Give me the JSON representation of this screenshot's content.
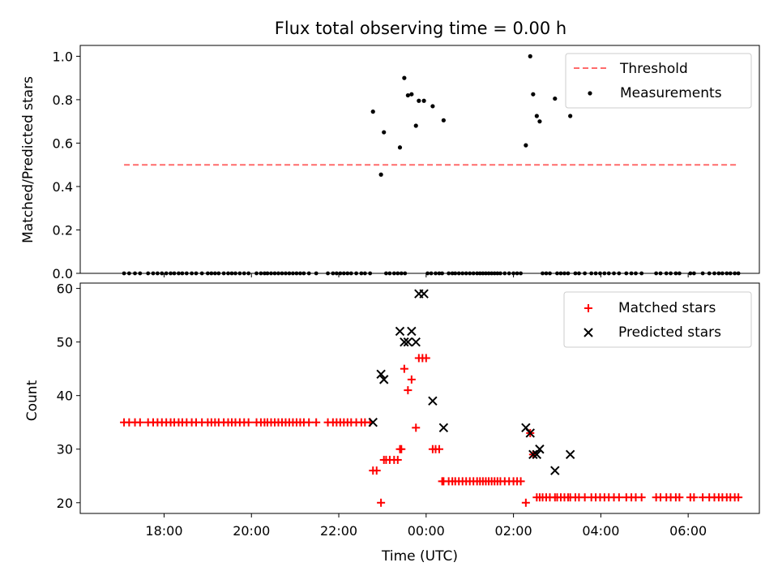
{
  "chart_data": [
    {
      "type": "scatter",
      "title": "Flux total observing time = 0.00 h",
      "xlabel": "",
      "ylabel": "Matched/Predicted stars",
      "ylim": [
        0,
        1.05
      ],
      "yticks": [
        "0.0",
        "0.2",
        "0.4",
        "0.6",
        "0.8",
        "1.0"
      ],
      "grid": false,
      "legend": "top-right",
      "series": [
        {
          "name": "Threshold",
          "kind": "dashed-line",
          "color": "#ff6b6b",
          "x": [
            "17:05",
            "07:10"
          ],
          "y": [
            0.5,
            0.5
          ]
        },
        {
          "name": "Measurements",
          "kind": "points",
          "color": "#000000",
          "x": [
            "22:47",
            "22:58",
            "23:02",
            "23:24",
            "23:30",
            "23:35",
            "23:40",
            "23:46",
            "23:50",
            "23:57",
            "00:09",
            "00:24",
            "02:17",
            "02:23",
            "02:27",
            "02:32",
            "02:36",
            "02:57",
            "03:18"
          ],
          "y": [
            0.745,
            0.455,
            0.65,
            0.58,
            0.9,
            0.82,
            0.825,
            0.68,
            0.795,
            0.795,
            0.77,
            0.705,
            0.59,
            1.0,
            0.825,
            0.725,
            0.7,
            0.805,
            0.725
          ]
        },
        {
          "name": "",
          "kind": "zero-points",
          "color": "#000000",
          "x": [
            "17:05",
            "17:12",
            "17:20",
            "17:27",
            "17:38",
            "17:45",
            "17:51",
            "17:57",
            "18:03",
            "18:09",
            "18:14",
            "18:20",
            "18:25",
            "18:31",
            "18:38",
            "18:44",
            "18:52",
            "19:00",
            "19:05",
            "19:10",
            "19:15",
            "19:22",
            "19:28",
            "19:33",
            "19:38",
            "19:44",
            "19:50",
            "19:56",
            "20:07",
            "20:13",
            "20:18",
            "20:22",
            "20:27",
            "20:32",
            "20:37",
            "20:42",
            "20:47",
            "20:52",
            "20:57",
            "21:02",
            "21:07",
            "21:12",
            "21:19",
            "21:29",
            "21:45",
            "21:52",
            "21:57",
            "22:02",
            "22:07",
            "22:12",
            "22:17",
            "22:24",
            "22:31",
            "22:36",
            "22:43",
            "23:05",
            "23:10",
            "23:16",
            "23:21",
            "23:26",
            "23:31",
            "00:02",
            "00:07",
            "00:13",
            "00:18",
            "00:22",
            "00:31",
            "00:36",
            "00:40",
            "00:45",
            "00:50",
            "00:55",
            "01:00",
            "01:05",
            "01:10",
            "01:14",
            "01:18",
            "01:22",
            "01:26",
            "01:30",
            "01:34",
            "01:38",
            "01:42",
            "01:48",
            "01:54",
            "02:00",
            "02:05",
            "02:10",
            "02:40",
            "02:45",
            "02:50",
            "03:00",
            "03:05",
            "03:10",
            "03:15",
            "03:25",
            "03:30",
            "03:38",
            "03:47",
            "03:53",
            "03:59",
            "04:05",
            "04:11",
            "04:18",
            "04:25",
            "04:35",
            "04:42",
            "04:48",
            "04:56",
            "05:16",
            "05:22",
            "05:30",
            "05:36",
            "05:43",
            "05:48",
            "06:03",
            "06:08",
            "06:20",
            "06:29",
            "06:36",
            "06:42",
            "06:47",
            "06:53",
            "06:58",
            "07:04",
            "07:09"
          ],
          "y_value": 0.0
        }
      ]
    },
    {
      "type": "scatter",
      "title": "",
      "xlabel": "Time (UTC)",
      "ylabel": "Count",
      "ylim": [
        18,
        61
      ],
      "yticks": [
        "20",
        "30",
        "40",
        "50",
        "60"
      ],
      "xticks": [
        "18:00",
        "20:00",
        "22:00",
        "00:00",
        "02:00",
        "04:00",
        "06:00"
      ],
      "grid": false,
      "legend": "top-right",
      "series": [
        {
          "name": "Matched stars",
          "marker": "plus",
          "color": "#ff0000",
          "x": [
            "17:05",
            "17:12",
            "17:20",
            "17:27",
            "17:38",
            "17:45",
            "17:51",
            "17:57",
            "18:03",
            "18:09",
            "18:14",
            "18:20",
            "18:25",
            "18:31",
            "18:38",
            "18:44",
            "18:52",
            "19:00",
            "19:05",
            "19:10",
            "19:15",
            "19:22",
            "19:28",
            "19:33",
            "19:38",
            "19:44",
            "19:50",
            "19:56",
            "20:07",
            "20:13",
            "20:18",
            "20:22",
            "20:27",
            "20:32",
            "20:37",
            "20:42",
            "20:47",
            "20:52",
            "20:57",
            "21:02",
            "21:07",
            "21:12",
            "21:19",
            "21:29",
            "21:45",
            "21:52",
            "21:57",
            "22:02",
            "22:07",
            "22:12",
            "22:17",
            "22:24",
            "22:31",
            "22:36",
            "22:43",
            "22:47",
            "22:52",
            "22:58",
            "23:02",
            "23:05",
            "23:10",
            "23:16",
            "23:21",
            "23:24",
            "23:26",
            "23:30",
            "23:35",
            "23:40",
            "23:46",
            "23:50",
            "23:55",
            "24:00",
            "00:09",
            "00:13",
            "00:18",
            "00:22",
            "00:24",
            "00:31",
            "00:36",
            "00:40",
            "00:45",
            "00:50",
            "00:55",
            "01:00",
            "01:05",
            "01:10",
            "01:14",
            "01:18",
            "01:22",
            "01:26",
            "01:30",
            "01:34",
            "01:38",
            "01:42",
            "01:48",
            "01:54",
            "02:00",
            "02:05",
            "02:10",
            "02:17",
            "02:23",
            "02:27",
            "02:32",
            "02:36",
            "02:40",
            "02:45",
            "02:50",
            "02:57",
            "03:00",
            "03:05",
            "03:10",
            "03:15",
            "03:18",
            "03:25",
            "03:30",
            "03:38",
            "03:47",
            "03:53",
            "03:59",
            "04:05",
            "04:11",
            "04:18",
            "04:25",
            "04:35",
            "04:42",
            "04:48",
            "04:56",
            "05:16",
            "05:22",
            "05:30",
            "05:36",
            "05:43",
            "05:48",
            "06:03",
            "06:08",
            "06:20",
            "06:29",
            "06:36",
            "06:42",
            "06:47",
            "06:53",
            "06:58",
            "07:04",
            "07:09"
          ],
          "y": [
            35,
            35,
            35,
            35,
            35,
            35,
            35,
            35,
            35,
            35,
            35,
            35,
            35,
            35,
            35,
            35,
            35,
            35,
            35,
            35,
            35,
            35,
            35,
            35,
            35,
            35,
            35,
            35,
            35,
            35,
            35,
            35,
            35,
            35,
            35,
            35,
            35,
            35,
            35,
            35,
            35,
            35,
            35,
            35,
            35,
            35,
            35,
            35,
            35,
            35,
            35,
            35,
            35,
            35,
            35,
            26,
            26,
            20,
            28,
            28,
            28,
            28,
            28,
            30,
            30,
            45,
            41,
            43,
            34,
            47,
            47,
            47,
            30,
            30,
            30,
            24,
            24,
            24,
            24,
            24,
            24,
            24,
            24,
            24,
            24,
            24,
            24,
            24,
            24,
            24,
            24,
            24,
            24,
            24,
            24,
            24,
            24,
            24,
            24,
            20,
            33,
            29,
            21,
            21,
            21,
            21,
            21,
            21,
            21,
            21,
            21,
            21,
            21,
            21,
            21,
            21,
            21,
            21,
            21,
            21,
            21,
            21,
            21,
            21,
            21,
            21,
            21,
            21,
            21,
            21,
            21,
            21,
            21,
            21,
            21,
            21,
            21,
            21,
            21,
            21,
            21,
            21,
            21,
            21
          ]
        },
        {
          "name": "Predicted stars",
          "marker": "x",
          "color": "#000000",
          "x": [
            "22:47",
            "22:58",
            "23:02",
            "23:24",
            "23:30",
            "23:35",
            "23:40",
            "23:46",
            "23:50",
            "23:57",
            "00:09",
            "00:24",
            "02:17",
            "02:23",
            "02:27",
            "02:32",
            "02:36",
            "02:57",
            "03:18"
          ],
          "y": [
            35,
            44,
            43,
            52,
            50,
            50,
            52,
            50,
            59,
            59,
            39,
            34,
            34,
            33,
            29,
            29,
            30,
            26,
            29
          ]
        }
      ]
    }
  ]
}
